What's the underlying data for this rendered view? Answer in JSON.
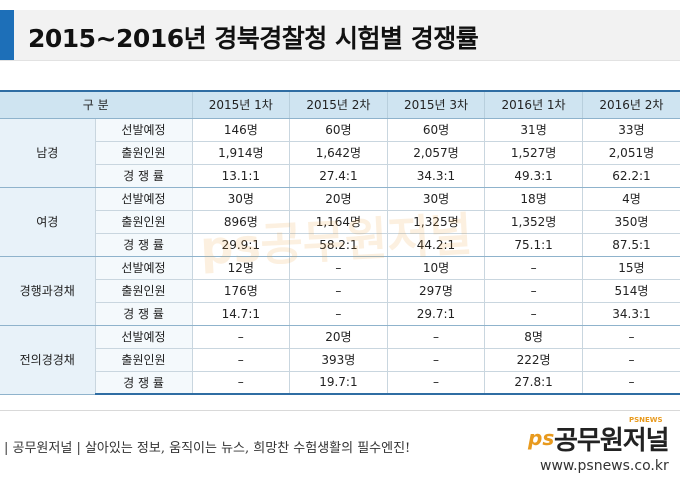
{
  "title": "2015~2016년 경북경찰청 시험별 경쟁률",
  "table": {
    "header": [
      "구 분",
      "2015년 1차",
      "2015년 2차",
      "2015년 3차",
      "2016년 1차",
      "2016년 2차"
    ],
    "groups": [
      {
        "name": "남경",
        "rows": [
          {
            "label": "선발예정",
            "values": [
              "146명",
              "60명",
              "60명",
              "31명",
              "33명"
            ]
          },
          {
            "label": "출원인원",
            "values": [
              "1,914명",
              "1,642명",
              "2,057명",
              "1,527명",
              "2,051명"
            ]
          },
          {
            "label": "경 쟁 률",
            "values": [
              "13.1:1",
              "27.4:1",
              "34.3:1",
              "49.3:1",
              "62.2:1"
            ]
          }
        ]
      },
      {
        "name": "여경",
        "rows": [
          {
            "label": "선발예정",
            "values": [
              "30명",
              "20명",
              "30명",
              "18명",
              "4명"
            ]
          },
          {
            "label": "출원인원",
            "values": [
              "896명",
              "1,164명",
              "1,325명",
              "1,352명",
              "350명"
            ]
          },
          {
            "label": "경 쟁 률",
            "values": [
              "29.9:1",
              "58.2:1",
              "44.2:1",
              "75.1:1",
              "87.5:1"
            ]
          }
        ]
      },
      {
        "name": "경행과경채",
        "rows": [
          {
            "label": "선발예정",
            "values": [
              "12명",
              "–",
              "10명",
              "–",
              "15명"
            ]
          },
          {
            "label": "출원인원",
            "values": [
              "176명",
              "–",
              "297명",
              "–",
              "514명"
            ]
          },
          {
            "label": "경 쟁 률",
            "values": [
              "14.7:1",
              "–",
              "29.7:1",
              "–",
              "34.3:1"
            ]
          }
        ]
      },
      {
        "name": "전의경경채",
        "rows": [
          {
            "label": "선발예정",
            "values": [
              "–",
              "20명",
              "–",
              "8명",
              "–"
            ]
          },
          {
            "label": "출원인원",
            "values": [
              "–",
              "393명",
              "–",
              "222명",
              "–"
            ]
          },
          {
            "label": "경 쟁 률",
            "values": [
              "–",
              "19.7:1",
              "–",
              "27.8:1",
              "–"
            ]
          }
        ]
      }
    ]
  },
  "footer": {
    "tagline": "| 공무원저널 | 살아있는 정보, 움직이는 뉴스, 희망찬 수험생활의 필수엔진!",
    "logo_ps": "ps",
    "logo_name": "공무원저널",
    "logo_small": "PSNEWS",
    "url": "www.psnews.co.kr"
  },
  "watermark": "ps공무원저널",
  "colors": {
    "accent": "#1d6fb8",
    "header_bg": "#cfe4f1",
    "logo_orange": "#e89a1e"
  }
}
